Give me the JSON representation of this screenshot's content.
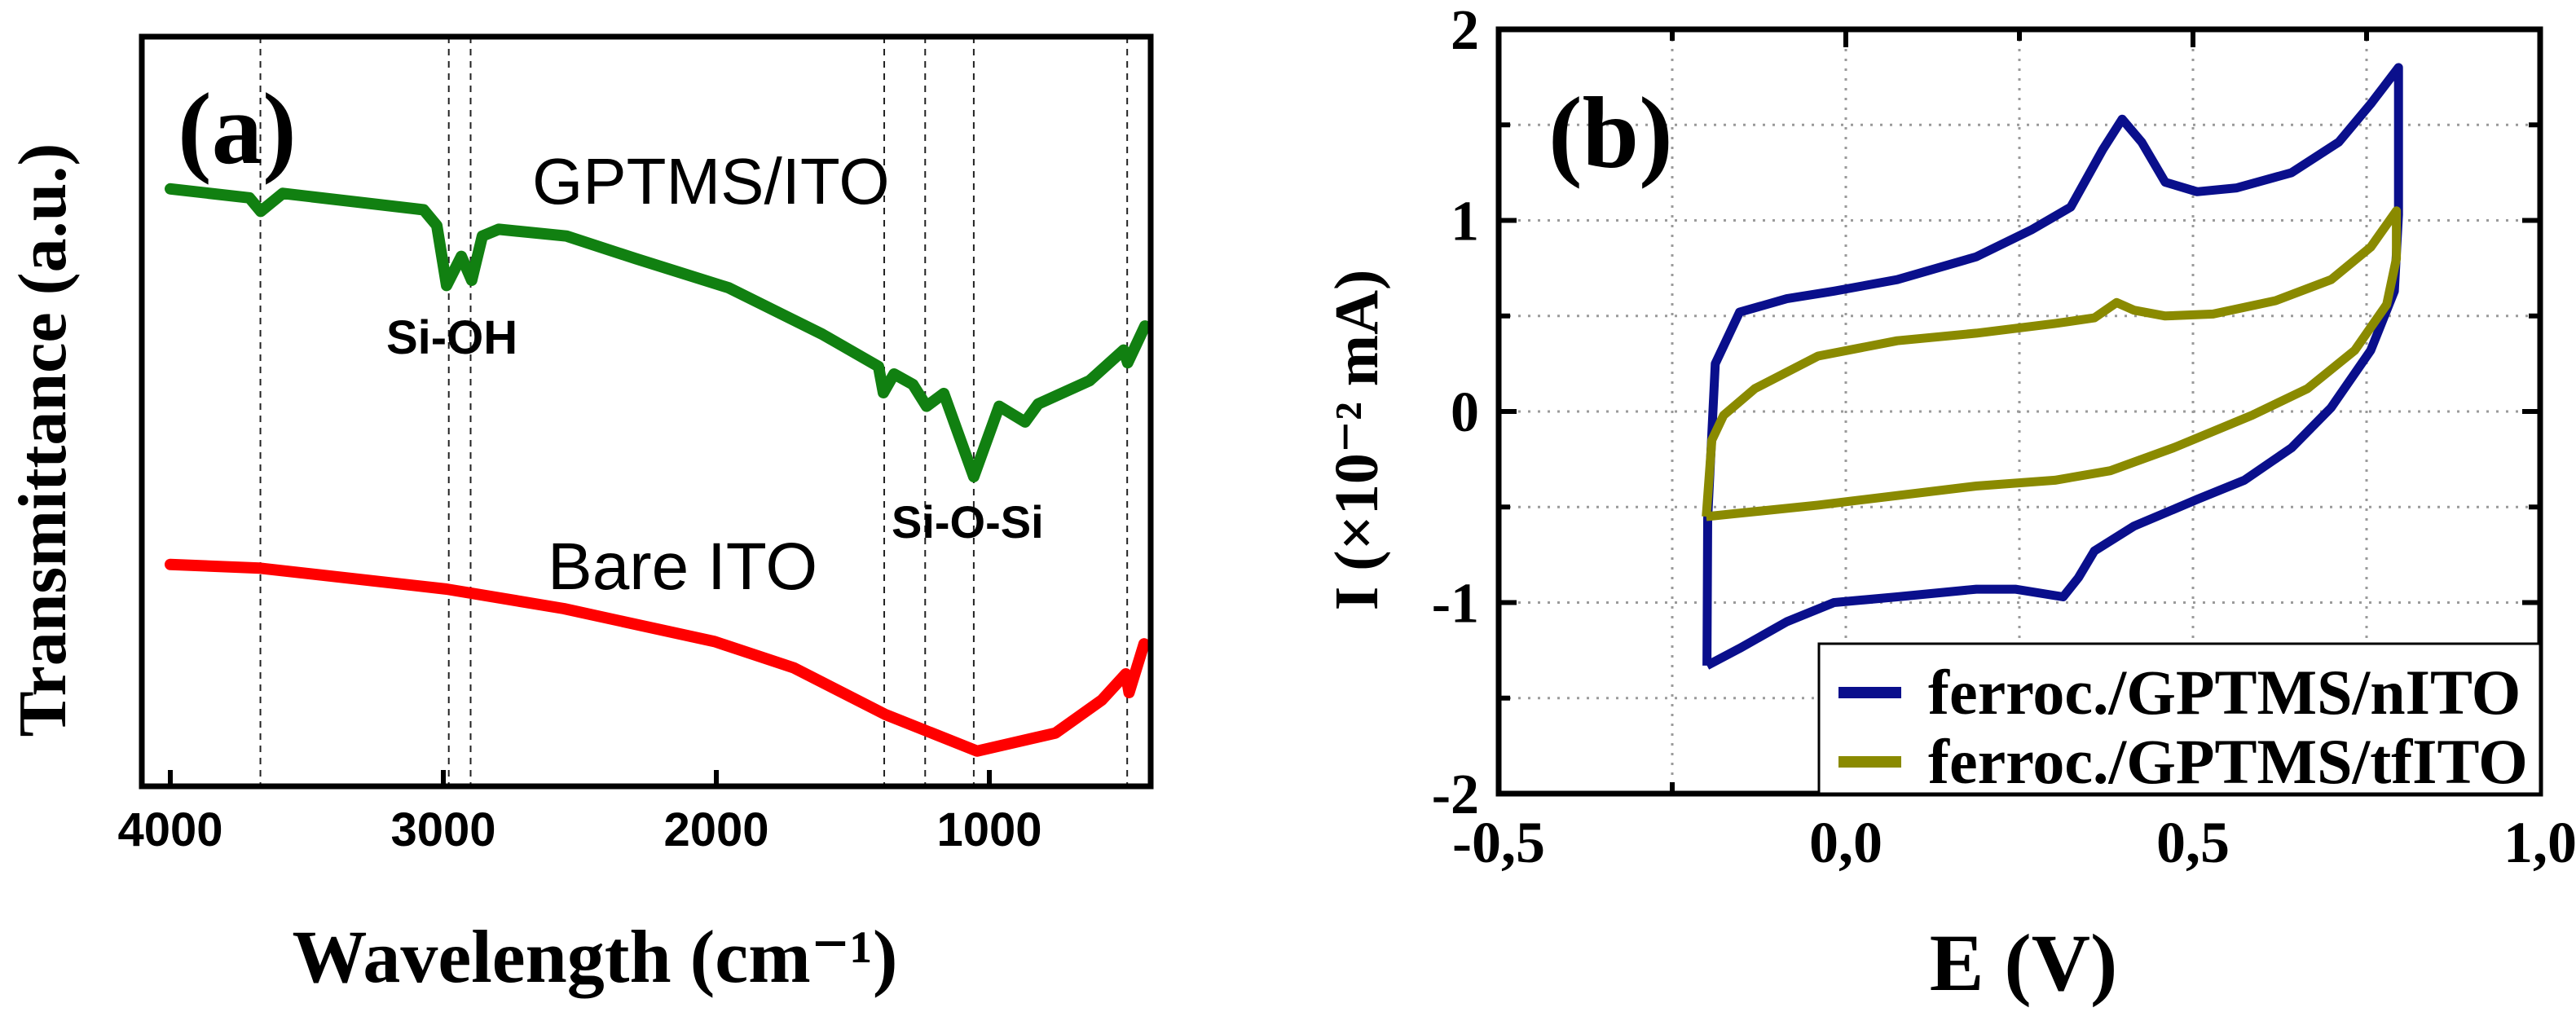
{
  "chart_data": [
    {
      "panel": "(a)",
      "type": "line",
      "xlabel": "Wavelength (cm⁻¹)",
      "ylabel": "Transmittance (a.u.)",
      "xlim": [
        4110,
        400
      ],
      "ylim": [
        0,
        100
      ],
      "x_reversed": true,
      "xticks": [
        4000,
        3000,
        2000,
        1000
      ],
      "xtick_labels": [
        "4000",
        "3000",
        "2000",
        "1000"
      ],
      "yticks": [],
      "grid": false,
      "reference_lines_x": [
        3670,
        2980,
        2900,
        1385,
        1235,
        1057,
        495
      ],
      "annotations": [
        {
          "text": "GPTMS/ITO",
          "x": 2700,
          "y": 80
        },
        {
          "text": "Si-OH",
          "x": 2900,
          "y": 60
        },
        {
          "text": "Bare ITO",
          "x": 2500,
          "y": 29
        },
        {
          "text": "Si-O-Si",
          "x": 1000,
          "y": 35
        }
      ],
      "series": [
        {
          "name": "GPTMS/ITO",
          "color": "#118011",
          "x": [
            4000,
            3710,
            3669,
            3588,
            3072,
            3024,
            2988,
            2934,
            2896,
            2857,
            2797,
            2549,
            2296,
            1955,
            1612,
            1406,
            1388,
            1349,
            1280,
            1230,
            1167,
            1057,
            964,
            869,
            821,
            633,
            508,
            493,
            430
          ],
          "y": [
            79.7,
            78.5,
            76.7,
            79.1,
            76.9,
            74.8,
            66.8,
            70.7,
            67.5,
            73.4,
            74.3,
            73.4,
            70.4,
            66.5,
            60.3,
            56.0,
            52.5,
            55.0,
            53.6,
            50.7,
            52.4,
            41.3,
            50.7,
            48.6,
            51.0,
            54.1,
            58.2,
            56.5,
            61.4
          ]
        },
        {
          "name": "Bare ITO",
          "color": "#ff0000",
          "x": [
            4000,
            3672,
            2988,
            2558,
            2006,
            1716,
            1382,
            1045,
            758,
            588,
            500,
            488,
            433
          ],
          "y": [
            29.6,
            29.1,
            26.3,
            23.7,
            19.3,
            15.8,
            9.6,
            4.7,
            7.1,
            11.5,
            15.0,
            12.5,
            19.0
          ]
        }
      ]
    },
    {
      "panel": "(b)",
      "type": "line",
      "xlabel": "E (V)",
      "ylabel": "I (×10⁻² mA)",
      "xlim": [
        -0.5,
        1.0
      ],
      "ylim": [
        -2,
        2
      ],
      "xticks": [
        -0.5,
        0.0,
        0.5,
        1.0
      ],
      "xtick_labels": [
        "-0,5",
        "0,0",
        "0,5",
        "1,0"
      ],
      "yticks": [
        2,
        1,
        0,
        -1,
        -2
      ],
      "ytick_labels": [
        "2",
        "1",
        "0",
        "-1",
        "-2"
      ],
      "grid": true,
      "legend_position": "bottom-right",
      "series": [
        {
          "name": "ferroc./GPTMS/nITO",
          "color": "#0a0f8c",
          "x": [
            -0.2,
            -0.199,
            -0.188,
            -0.153,
            -0.085,
            -0.017,
            0.074,
            0.188,
            0.267,
            0.324,
            0.37,
            0.398,
            0.426,
            0.46,
            0.506,
            0.563,
            0.642,
            0.71,
            0.756,
            0.796,
            0.796,
            0.79,
            0.756,
            0.699,
            0.642,
            0.574,
            0.506,
            0.415,
            0.358,
            0.335,
            0.313,
            0.244,
            0.188,
            0.074,
            -0.017,
            -0.085,
            -0.153,
            -0.2
          ],
          "y": [
            -1.33,
            -0.56,
            0.25,
            0.52,
            0.59,
            0.63,
            0.69,
            0.81,
            0.95,
            1.07,
            1.37,
            1.53,
            1.41,
            1.2,
            1.15,
            1.17,
            1.25,
            1.41,
            1.61,
            1.8,
            1.03,
            0.63,
            0.32,
            0.02,
            -0.19,
            -0.36,
            -0.46,
            -0.6,
            -0.73,
            -0.87,
            -0.97,
            -0.93,
            -0.93,
            -0.97,
            -1.0,
            -1.1,
            -1.24,
            -1.33
          ]
        },
        {
          "name": "ferroc./GPTMS/tfITO",
          "color": "#8a8a00",
          "x": [
            -0.201,
            -0.193,
            -0.176,
            -0.131,
            -0.04,
            0.074,
            0.188,
            0.301,
            0.358,
            0.39,
            0.415,
            0.46,
            0.529,
            0.619,
            0.699,
            0.756,
            0.793,
            0.793,
            0.779,
            0.733,
            0.665,
            0.585,
            0.472,
            0.381,
            0.301,
            0.188,
            0.074,
            -0.04,
            -0.201
          ],
          "y": [
            -0.55,
            -0.15,
            -0.02,
            0.12,
            0.29,
            0.37,
            0.41,
            0.46,
            0.49,
            0.57,
            0.53,
            0.5,
            0.51,
            0.58,
            0.69,
            0.86,
            1.05,
            0.8,
            0.56,
            0.32,
            0.12,
            -0.02,
            -0.19,
            -0.31,
            -0.36,
            -0.39,
            -0.44,
            -0.49,
            -0.55
          ]
        }
      ]
    }
  ]
}
